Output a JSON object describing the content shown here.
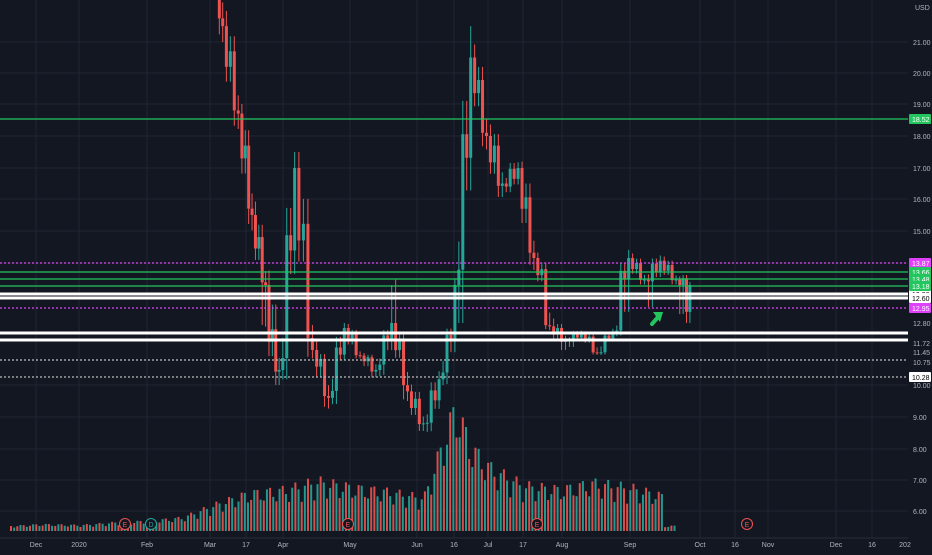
{
  "chart_data": {
    "type": "candlestick",
    "currency_label": "USD",
    "y_axis_ticks": [
      "21.00",
      "20.00",
      "19.00",
      "18.00",
      "17.00",
      "16.00",
      "15.00",
      "10.00",
      "9.00",
      "8.00",
      "7.00",
      "6.00"
    ],
    "y_axis_labels_near_price": [
      "13.00",
      "12.97",
      "12.80",
      "11.72",
      "11.45",
      "10.75",
      "10.28"
    ],
    "x_axis_labels": [
      "Dec",
      "2020",
      "Feb",
      "Mar",
      "17",
      "Apr",
      "May",
      "Jun",
      "16",
      "Jul",
      "17",
      "Aug",
      "Sep",
      "Oct",
      "16",
      "Nov",
      "Dec",
      "16",
      "202"
    ],
    "horizontal_levels": [
      {
        "price": 18.52,
        "label": "18.52",
        "color": "#22c55e",
        "style": "solid"
      },
      {
        "price": 13.87,
        "label": "13.87",
        "color": "#e040fb",
        "style": "dotted"
      },
      {
        "price": 13.66,
        "label": "13.66",
        "color": "#22c55e",
        "style": "solid"
      },
      {
        "price": 13.48,
        "label": "13.48",
        "color": "#22c55e",
        "style": "solid"
      },
      {
        "price": 13.18,
        "label": "13.18",
        "color": "#22c55e",
        "style": "solid"
      },
      {
        "price": 13.08,
        "label": "",
        "color": "#ffffff",
        "style": "solid"
      },
      {
        "price": 12.95,
        "label": "12.95",
        "color": "#e040fb",
        "style": "dotted"
      },
      {
        "price": 12.6,
        "label": "12.60",
        "color": "#ffffff",
        "style": "solid"
      },
      {
        "price": 12.33,
        "label": "",
        "color": "#ffffff",
        "style": "solid"
      },
      {
        "price": 12.13,
        "label": "",
        "color": "#ffffff",
        "style": "solid"
      },
      {
        "price": 11.1,
        "label": "",
        "color": "#bbbbbb",
        "style": "dotted"
      },
      {
        "price": 10.5,
        "label": "",
        "color": "#bbbbbb",
        "style": "dotted"
      }
    ],
    "event_markers": [
      {
        "label": "E",
        "date": "2020-01-22"
      },
      {
        "label": "D",
        "date": "2020-01-29"
      },
      {
        "label": "E",
        "date": "2020-05-05"
      },
      {
        "label": "E",
        "date": "2020-07-28"
      },
      {
        "label": "E",
        "date": "2020-10-27"
      }
    ],
    "annotation": {
      "type": "arrow",
      "color": "#22c55e",
      "date": "2020-09-10",
      "price": 12.75
    },
    "colors": {
      "up": "#26a69a",
      "down": "#ef5350",
      "background": "#131722",
      "grid": "#1f2533"
    },
    "candles": [
      [
        "2020-02-20",
        24,
        26,
        23.5,
        25.5
      ],
      [
        "2020-02-28",
        25,
        25.2,
        21,
        21.5
      ],
      [
        "2020-03-05",
        21.5,
        22,
        18,
        18.7
      ],
      [
        "2020-03-12",
        18.7,
        19,
        15,
        15.5
      ],
      [
        "2020-03-18",
        15.5,
        16,
        12.5,
        13
      ],
      [
        "2020-03-24",
        13,
        14.5,
        10,
        10.5
      ],
      [
        "2020-03-30",
        10.5,
        17.5,
        10.2,
        17
      ],
      [
        "2020-04-06",
        17,
        17.5,
        11,
        11.5
      ],
      [
        "2020-04-14",
        11.5,
        12,
        9.2,
        9.6
      ],
      [
        "2020-04-21",
        9.6,
        12.8,
        9.4,
        12.5
      ],
      [
        "2020-04-28",
        12.5,
        13,
        11,
        11.2
      ],
      [
        "2020-05-05",
        11.2,
        11.6,
        10.1,
        10.5
      ],
      [
        "2020-05-12",
        10.5,
        13,
        10.3,
        12.8
      ],
      [
        "2020-05-19",
        12.8,
        13.2,
        9.5,
        9.8
      ],
      [
        "2020-05-26",
        9.8,
        10.2,
        8.4,
        8.8
      ],
      [
        "2020-06-02",
        8.8,
        10.5,
        8.3,
        10.2
      ],
      [
        "2020-06-09",
        10.2,
        13.2,
        10,
        13
      ],
      [
        "2020-06-16",
        13,
        21.5,
        12.8,
        20.5
      ],
      [
        "2020-06-23",
        20.5,
        21,
        17.5,
        18
      ],
      [
        "2020-06-30",
        18,
        18.5,
        15.5,
        16.5
      ],
      [
        "2020-07-07",
        16.5,
        17.5,
        16,
        17
      ],
      [
        "2020-07-14",
        17,
        17.2,
        13.5,
        14
      ],
      [
        "2020-07-21",
        14,
        14.2,
        12.3,
        12.6
      ],
      [
        "2020-07-28",
        12.6,
        13.5,
        11.5,
        11.8
      ],
      [
        "2020-08-04",
        11.8,
        12.5,
        11.3,
        12.2
      ],
      [
        "2020-08-11",
        12.2,
        12.3,
        11.1,
        11.4
      ],
      [
        "2020-08-18",
        11.4,
        12.5,
        11.2,
        12.3
      ],
      [
        "2020-08-25",
        12.3,
        14.5,
        12,
        14
      ],
      [
        "2020-09-01",
        14,
        14.2,
        12.8,
        13.2
      ],
      [
        "2020-09-08",
        13.2,
        14.2,
        12.6,
        13.9
      ],
      [
        "2020-09-15",
        13.9,
        14.3,
        13,
        13.2
      ],
      [
        "2020-09-22",
        13.2,
        13.8,
        12.8,
        13
      ]
    ],
    "volume": [
      [
        "2019-12-01",
        0.6
      ],
      [
        "2019-12-15",
        0.8
      ],
      [
        "2020-01-01",
        0.7
      ],
      [
        "2020-01-15",
        1.0
      ],
      [
        "2020-02-01",
        1.2
      ],
      [
        "2020-02-15",
        1.6
      ],
      [
        "2020-03-01",
        3.2
      ],
      [
        "2020-03-15",
        4.5
      ],
      [
        "2020-04-01",
        5.0
      ],
      [
        "2020-04-15",
        6.0
      ],
      [
        "2020-05-01",
        5.2
      ],
      [
        "2020-05-15",
        4.8
      ],
      [
        "2020-06-01",
        4.0
      ],
      [
        "2020-06-15",
        15.0
      ],
      [
        "2020-06-22",
        10.0
      ],
      [
        "2020-07-01",
        7.5
      ],
      [
        "2020-07-15",
        5.5
      ],
      [
        "2020-08-01",
        5.0
      ],
      [
        "2020-08-15",
        5.8
      ],
      [
        "2020-09-01",
        5.2
      ],
      [
        "2020-09-15",
        4.2
      ]
    ]
  }
}
